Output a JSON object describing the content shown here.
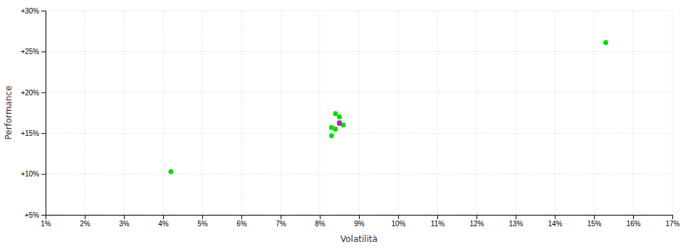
{
  "chart_data": {
    "type": "scatter",
    "xlabel": "Volatilità",
    "ylabel": "Performance",
    "xlim": [
      0.01,
      0.17
    ],
    "ylim": [
      0.05,
      0.3
    ],
    "xticks": [
      {
        "value": 0.01,
        "label": "1%"
      },
      {
        "value": 0.02,
        "label": "2%"
      },
      {
        "value": 0.03,
        "label": "3%"
      },
      {
        "value": 0.04,
        "label": "4%"
      },
      {
        "value": 0.05,
        "label": "5%"
      },
      {
        "value": 0.06,
        "label": "6%"
      },
      {
        "value": 0.07,
        "label": "7%"
      },
      {
        "value": 0.08,
        "label": "8%"
      },
      {
        "value": 0.09,
        "label": "9%"
      },
      {
        "value": 0.1,
        "label": "10%"
      },
      {
        "value": 0.11,
        "label": "11%"
      },
      {
        "value": 0.12,
        "label": "12%"
      },
      {
        "value": 0.13,
        "label": "13%"
      },
      {
        "value": 0.14,
        "label": "14%"
      },
      {
        "value": 0.15,
        "label": "15%"
      },
      {
        "value": 0.16,
        "label": "16%"
      },
      {
        "value": 0.17,
        "label": "17%"
      }
    ],
    "yticks": [
      {
        "value": 0.05,
        "label": "+5%"
      },
      {
        "value": 0.1,
        "label": "+10%"
      },
      {
        "value": 0.15,
        "label": "+15%"
      },
      {
        "value": 0.2,
        "label": "+20%"
      },
      {
        "value": 0.25,
        "label": "+25%"
      },
      {
        "value": 0.3,
        "label": "+30%"
      }
    ],
    "grid": true,
    "series": [
      {
        "color": "#00dd00",
        "x": [
          0.042,
          0.083,
          0.084,
          0.085,
          0.085,
          0.086,
          0.083,
          0.084,
          0.153
        ],
        "values": [
          0.103,
          0.147,
          0.155,
          0.163,
          0.17,
          0.16,
          0.157,
          0.174,
          0.261
        ]
      },
      {
        "color": "#dd00dd",
        "x": [
          0.085
        ],
        "values": [
          0.162
        ]
      }
    ]
  }
}
